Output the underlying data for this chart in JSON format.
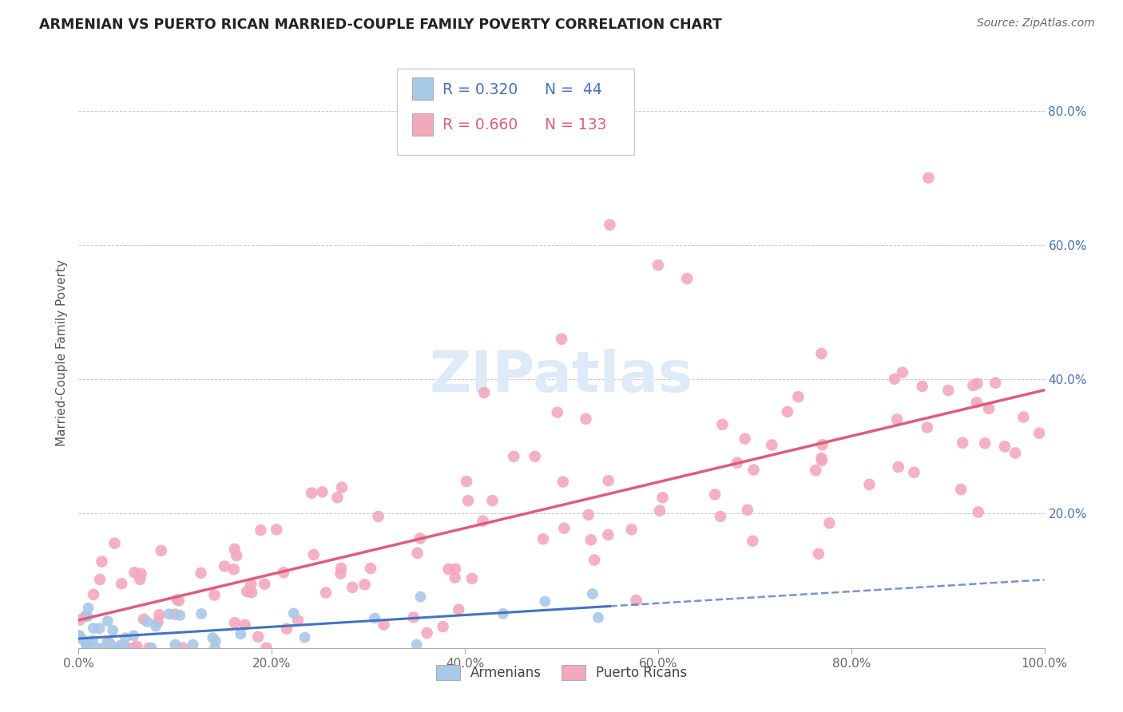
{
  "title": "ARMENIAN VS PUERTO RICAN MARRIED-COUPLE FAMILY POVERTY CORRELATION CHART",
  "source": "Source: ZipAtlas.com",
  "ylabel": "Married-Couple Family Poverty",
  "armenian_R": 0.32,
  "armenian_N": 44,
  "puerto_rican_R": 0.66,
  "puerto_rican_N": 133,
  "armenian_color": "#a8c8e8",
  "puerto_rican_color": "#f4a8bc",
  "armenian_line_color": "#4472C4",
  "puerto_rican_line_color": "#E05C7A",
  "background_color": "#ffffff",
  "grid_color": "#cccccc",
  "right_tick_color": "#4472C4",
  "watermark_color": "#ddeaf7",
  "xlim": [
    0,
    1.0
  ],
  "ylim": [
    0,
    0.88
  ],
  "ytick_positions": [
    0.2,
    0.4,
    0.6,
    0.8
  ],
  "ytick_labels": [
    "20.0%",
    "40.0%",
    "60.0%",
    "80.0%"
  ],
  "xtick_positions": [
    0.0,
    0.2,
    0.4,
    0.6,
    0.8,
    1.0
  ],
  "xtick_labels": [
    "0.0%",
    "20.0%",
    "40.0%",
    "60.0%",
    "80.0%",
    "100.0%"
  ]
}
